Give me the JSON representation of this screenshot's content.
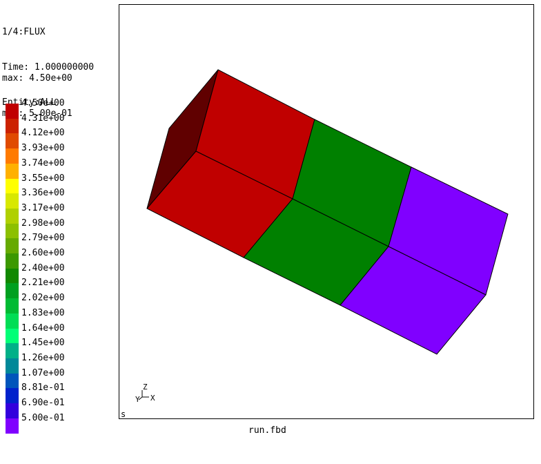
{
  "info": {
    "line1": "1/4:FLUX",
    "line2": "Time: 1.000000000",
    "line3": "Entity:ALL",
    "max": "max: 4.50e+00",
    "min": "min: 5.00e-01"
  },
  "legend": [
    {
      "label": "4.50e+00",
      "color": "#c00000"
    },
    {
      "label": "4.31e+00",
      "color": "#cc2200"
    },
    {
      "label": "4.12e+00",
      "color": "#e04a00"
    },
    {
      "label": "3.93e+00",
      "color": "#ff7a00"
    },
    {
      "label": "3.74e+00",
      "color": "#ffb000"
    },
    {
      "label": "3.55e+00",
      "color": "#ffff00"
    },
    {
      "label": "3.36e+00",
      "color": "#d8e800"
    },
    {
      "label": "3.17e+00",
      "color": "#b0d000"
    },
    {
      "label": "2.98e+00",
      "color": "#8cc000"
    },
    {
      "label": "2.79e+00",
      "color": "#66aa00"
    },
    {
      "label": "2.60e+00",
      "color": "#3c9800"
    },
    {
      "label": "2.40e+00",
      "color": "#118800"
    },
    {
      "label": "2.21e+00",
      "color": "#00a020"
    },
    {
      "label": "2.02e+00",
      "color": "#00bb33"
    },
    {
      "label": "1.83e+00",
      "color": "#00dd55"
    },
    {
      "label": "1.64e+00",
      "color": "#00ff77"
    },
    {
      "label": "1.45e+00",
      "color": "#00b088"
    },
    {
      "label": "1.26e+00",
      "color": "#008899"
    },
    {
      "label": "1.07e+00",
      "color": "#0055bb"
    },
    {
      "label": "8.81e-01",
      "color": "#0022cc"
    },
    {
      "label": "6.90e-01",
      "color": "#3300dd"
    },
    {
      "label": "5.00e-01",
      "color": "#8000ff"
    }
  ],
  "viewport": {
    "view_letter": "s",
    "triad": {
      "z": "Z",
      "y": "Y",
      "x": "X"
    },
    "colors": {
      "red": "#c00000",
      "dark_red": "#600000",
      "green": "#008000",
      "purple": "#8000ff"
    }
  },
  "filename": "run.fbd"
}
